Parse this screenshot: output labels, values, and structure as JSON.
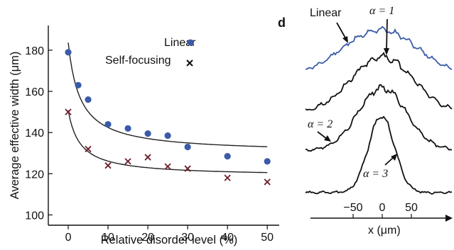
{
  "chart_data": [
    {
      "type": "scatter",
      "xlabel": "Relative disorder level (%)",
      "ylabel": "Average effective width (μm)",
      "xlim": [
        -5,
        53
      ],
      "ylim": [
        95,
        192
      ],
      "xticks": [
        0,
        10,
        20,
        30,
        40,
        50
      ],
      "yticks": [
        100,
        120,
        140,
        160,
        180
      ],
      "legend_position": "top-right",
      "series": [
        {
          "name": "Linear",
          "marker": "circle",
          "color": "#3a5ba8",
          "x": [
            0,
            2.5,
            5,
            10,
            15,
            20,
            25,
            30,
            40,
            50
          ],
          "y": [
            179,
            163,
            156,
            144,
            142,
            139.5,
            138.5,
            133,
            128.5,
            126
          ]
        },
        {
          "name": "Self-focusing",
          "marker": "x",
          "color": "#6b1f2a",
          "x": [
            0,
            5,
            10,
            15,
            20,
            25,
            30,
            40,
            50
          ],
          "y": [
            150,
            132,
            124,
            126,
            128,
            123.5,
            122.5,
            118,
            116
          ]
        }
      ],
      "fit_curves": [
        {
          "series": "Linear",
          "color": "#222222"
        },
        {
          "series": "Self-focusing",
          "color": "#222222"
        }
      ]
    },
    {
      "type": "line",
      "panel_label": "d",
      "xlabel": "x (μm)",
      "xticks": [
        -50,
        0,
        50
      ],
      "curve_labels": [
        "Linear",
        "α = 1",
        "α = 2",
        "α = 3"
      ],
      "colors": {
        "linear": "#3a5ba8",
        "nonlinear": "#111111"
      }
    }
  ]
}
